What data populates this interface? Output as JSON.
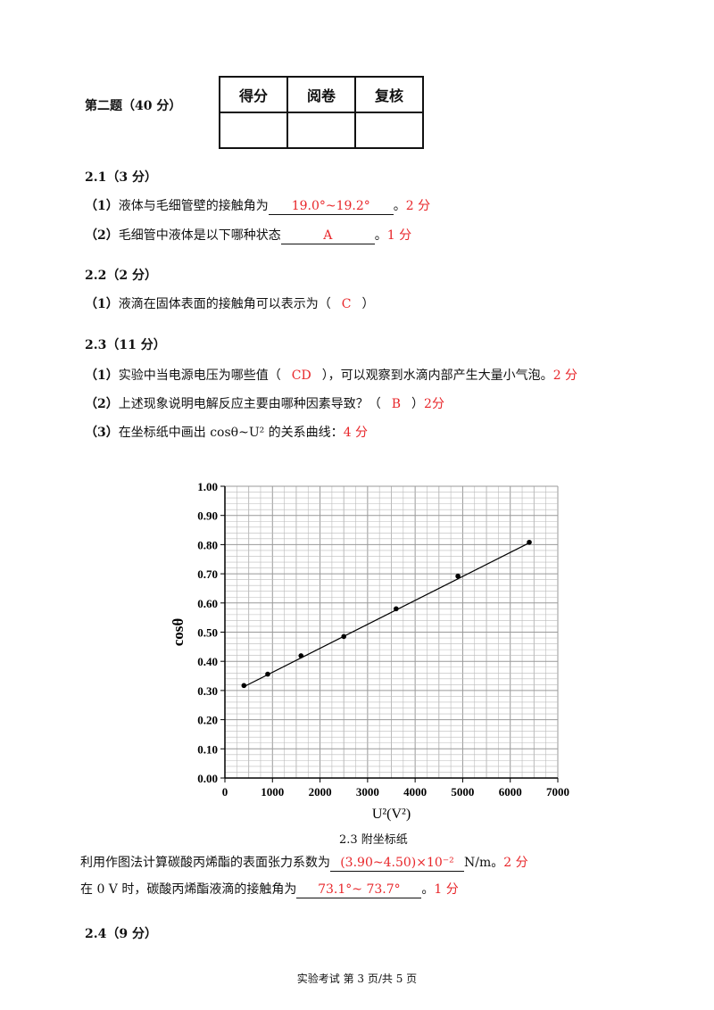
{
  "section_title": "第二题（40 分）",
  "score_table": {
    "headers": [
      "得分",
      "阅卷",
      "复核"
    ]
  },
  "q21": {
    "title": "2.1（3 分）",
    "p1": {
      "label": "（1）",
      "text": "液体与毛细管壁的接触角为",
      "answer": "19.0°~19.2°",
      "end": "。",
      "points": "2 分"
    },
    "p2": {
      "label": "（2）",
      "text": "毛细管中液体是以下哪种状态",
      "answer": "A",
      "end": "。",
      "points": "1 分"
    }
  },
  "q22": {
    "title": "2.2（2 分）",
    "p1": {
      "label": "（1）",
      "text": "液滴在固体表面的接触角可以表示为（",
      "answer": "C",
      "end": "）"
    }
  },
  "q23": {
    "title": "2.3（11 分）",
    "p1": {
      "label": "（1）",
      "text": "实验中当电源电压为哪些值（",
      "answer": "CD",
      "end": "），可以观察到水滴内部产生大量小气泡。",
      "points": "2 分"
    },
    "p2": {
      "label": "（2）",
      "text": "上述现象说明电解反应主要由哪种因素导致？（",
      "answer": "B",
      "end": "）",
      "points": "2分"
    },
    "p3": {
      "label": "（3）",
      "text": "在坐标纸中画出 cosθ~U² 的关系曲线：",
      "points": "4 分"
    },
    "caption": "2.3  附坐标纸",
    "l1": {
      "text": "利用作图法计算碳酸丙烯酯的表面张力系数为",
      "answer": "(3.90~4.50)×10⁻²",
      "end": "N/m。",
      "points": "2 分"
    },
    "l2": {
      "text": "在 0 V 时，碳酸丙烯酯液滴的接触角为",
      "answer": "73.1°~ 73.7°",
      "end": "。",
      "points": "1 分"
    }
  },
  "q24": {
    "title": "2.4（9 分）"
  },
  "footer": "实验考试    第 3 页/共 5 页",
  "chart_data": {
    "type": "scatter",
    "xlabel": "U²(V²)",
    "ylabel": "cosθ",
    "xlim": [
      0,
      7000
    ],
    "ylim": [
      0,
      1.0
    ],
    "xticks": [
      "0",
      "1000",
      "2000",
      "3000",
      "4000",
      "5000",
      "6000",
      "7000"
    ],
    "yticks": [
      "0.00",
      "0.10",
      "0.20",
      "0.30",
      "0.40",
      "0.50",
      "0.60",
      "0.70",
      "0.80",
      "0.90",
      "1.00"
    ],
    "grid": true,
    "x": [
      400,
      900,
      1600,
      2500,
      3600,
      4900,
      6400
    ],
    "y": [
      0.317,
      0.356,
      0.419,
      0.485,
      0.58,
      0.692,
      0.808
    ],
    "fit_line": {
      "x": [
        400,
        6400
      ],
      "y": [
        0.313,
        0.806
      ]
    }
  }
}
